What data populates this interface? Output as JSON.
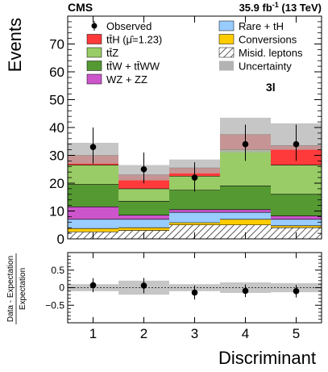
{
  "header": {
    "experiment": "CMS",
    "lumi_text": "35.9 fb",
    "lumi_sup": "-1",
    "energy": " (13 TeV)"
  },
  "channel_label": "3l",
  "legend": {
    "left": [
      {
        "key": "observed",
        "label": "Observed"
      },
      {
        "key": "tth",
        "label": "tt̄H (μ̂=1.23)"
      },
      {
        "key": "ttz",
        "label": "tt̄Z"
      },
      {
        "key": "ttw",
        "label": "tt̄W + tt̄WW"
      },
      {
        "key": "wzzz",
        "label": "WZ + ZZ"
      }
    ],
    "right": [
      {
        "key": "rare",
        "label": "Rare + tH"
      },
      {
        "key": "conv",
        "label": "Conversions"
      },
      {
        "key": "misid",
        "label": "Misid. leptons"
      },
      {
        "key": "unc",
        "label": "Uncertainty"
      }
    ]
  },
  "colors": {
    "tth": "#ff3a3a",
    "ttz": "#99cc66",
    "ttw": "#559933",
    "wzzz": "#cc55cc",
    "rare": "#99ccff",
    "conv": "#ffcc00",
    "misid_hatch": "#333333",
    "uncertainty": "#b3b3b3",
    "observed": "#000000"
  },
  "chart_data": [
    {
      "type": "bar",
      "stacked": true,
      "panel": "main",
      "categories": [
        "1",
        "2",
        "3",
        "4",
        "5"
      ],
      "xlabel": "Discriminant",
      "ylabel": "Events",
      "ylim": [
        0,
        80
      ],
      "yticks": [
        0,
        10,
        20,
        30,
        40,
        50,
        60,
        70
      ],
      "xticks": [
        "1",
        "2",
        "3",
        "4",
        "5"
      ],
      "series": [
        {
          "key": "misid",
          "name": "Misid. leptons",
          "values": [
            2.5,
            3.0,
            5.0,
            5.0,
            4.0
          ]
        },
        {
          "key": "conv",
          "name": "Conversions",
          "values": [
            1.2,
            1.0,
            0.8,
            2.0,
            0.7
          ]
        },
        {
          "key": "rare",
          "name": "Rare + tH",
          "values": [
            3.3,
            3.0,
            3.7,
            2.5,
            2.3
          ]
        },
        {
          "key": "wzzz",
          "name": "WZ + ZZ",
          "values": [
            4.5,
            1.5,
            1.0,
            1.0,
            1.2
          ]
        },
        {
          "key": "ttw",
          "name": "tt̄W + tt̄WW",
          "values": [
            8.0,
            5.0,
            7.0,
            8.5,
            7.8
          ]
        },
        {
          "key": "ttz",
          "name": "tt̄Z",
          "values": [
            7.0,
            4.5,
            5.0,
            13.0,
            10.5
          ]
        },
        {
          "key": "tth",
          "name": "tt̄H (μ̂=1.23)",
          "values": [
            3.5,
            5.0,
            3.0,
            5.5,
            7.0
          ]
        }
      ],
      "uncertainty": {
        "low": [
          27.0,
          21.0,
          23.5,
          31.0,
          32.0
        ],
        "high": [
          34.5,
          26.5,
          28.5,
          43.5,
          41.5
        ]
      },
      "observed": {
        "values": [
          33,
          25,
          22,
          34,
          34
        ],
        "err_low": [
          6,
          5,
          5,
          6,
          6
        ],
        "err_high": [
          7,
          6,
          5.5,
          7,
          7
        ]
      }
    },
    {
      "type": "scatter",
      "panel": "ratio",
      "categories": [
        "1",
        "2",
        "3",
        "4",
        "5"
      ],
      "ylabel": "Data - Expectation / Expectation",
      "ylabel_top": "Data - Expectation",
      "ylabel_bottom": "Expectation",
      "ylim": [
        -1.0,
        1.0
      ],
      "yticks": [
        -0.5,
        0,
        0.5
      ],
      "ytick_labels": [
        "−0.5",
        "0",
        "0.5"
      ],
      "values": [
        0.07,
        0.06,
        -0.14,
        -0.09,
        -0.1
      ],
      "err": [
        0.2,
        0.22,
        0.2,
        0.18,
        0.18
      ],
      "band": [
        0.1,
        0.2,
        0.1,
        0.15,
        0.13
      ]
    }
  ]
}
